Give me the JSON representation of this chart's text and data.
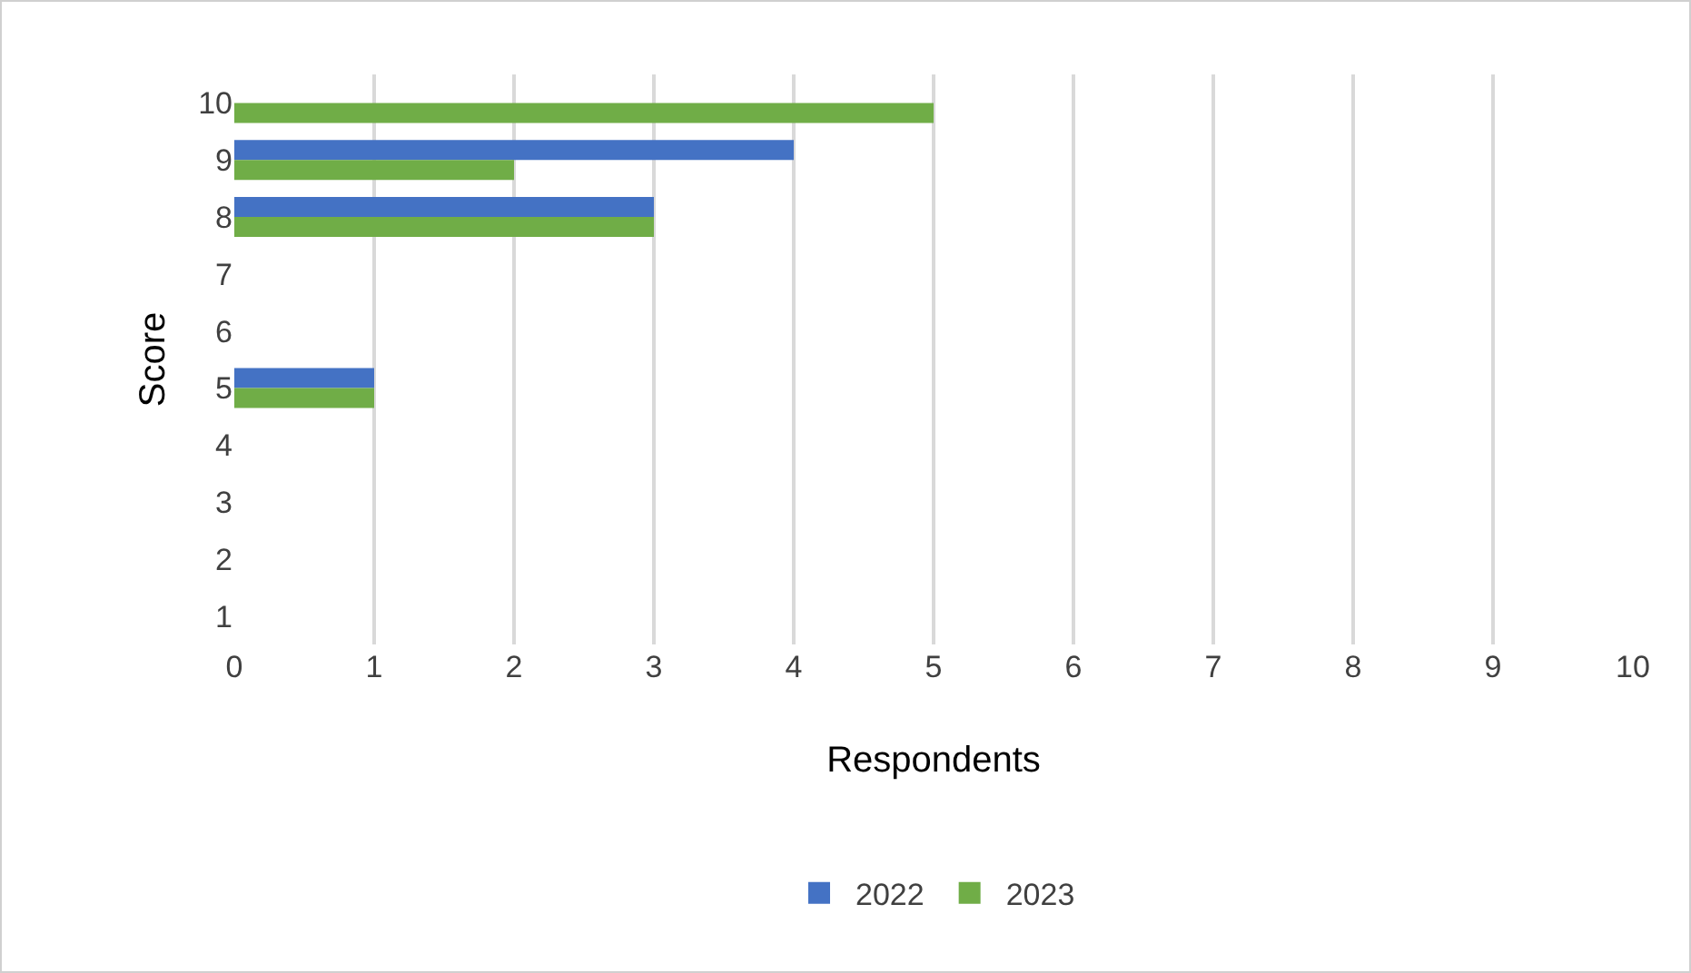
{
  "chart_data": {
    "type": "bar",
    "orientation": "horizontal",
    "xlabel": "Respondents",
    "ylabel": "Score",
    "categories": [
      "10",
      "9",
      "8",
      "7",
      "6",
      "5",
      "4",
      "3",
      "2",
      "1"
    ],
    "series": [
      {
        "name": "2022",
        "color": "#4472c4",
        "values": [
          0,
          4,
          3,
          0,
          0,
          1,
          0,
          0,
          0,
          0
        ]
      },
      {
        "name": "2023",
        "color": "#70ad47",
        "values": [
          5,
          2,
          3,
          0,
          0,
          1,
          0,
          0,
          0,
          0
        ]
      }
    ],
    "xlim": [
      0,
      10
    ],
    "xticks": [
      0,
      1,
      2,
      3,
      4,
      5,
      6,
      7,
      8,
      9,
      10
    ],
    "grid": "x",
    "legend": "bottom"
  }
}
